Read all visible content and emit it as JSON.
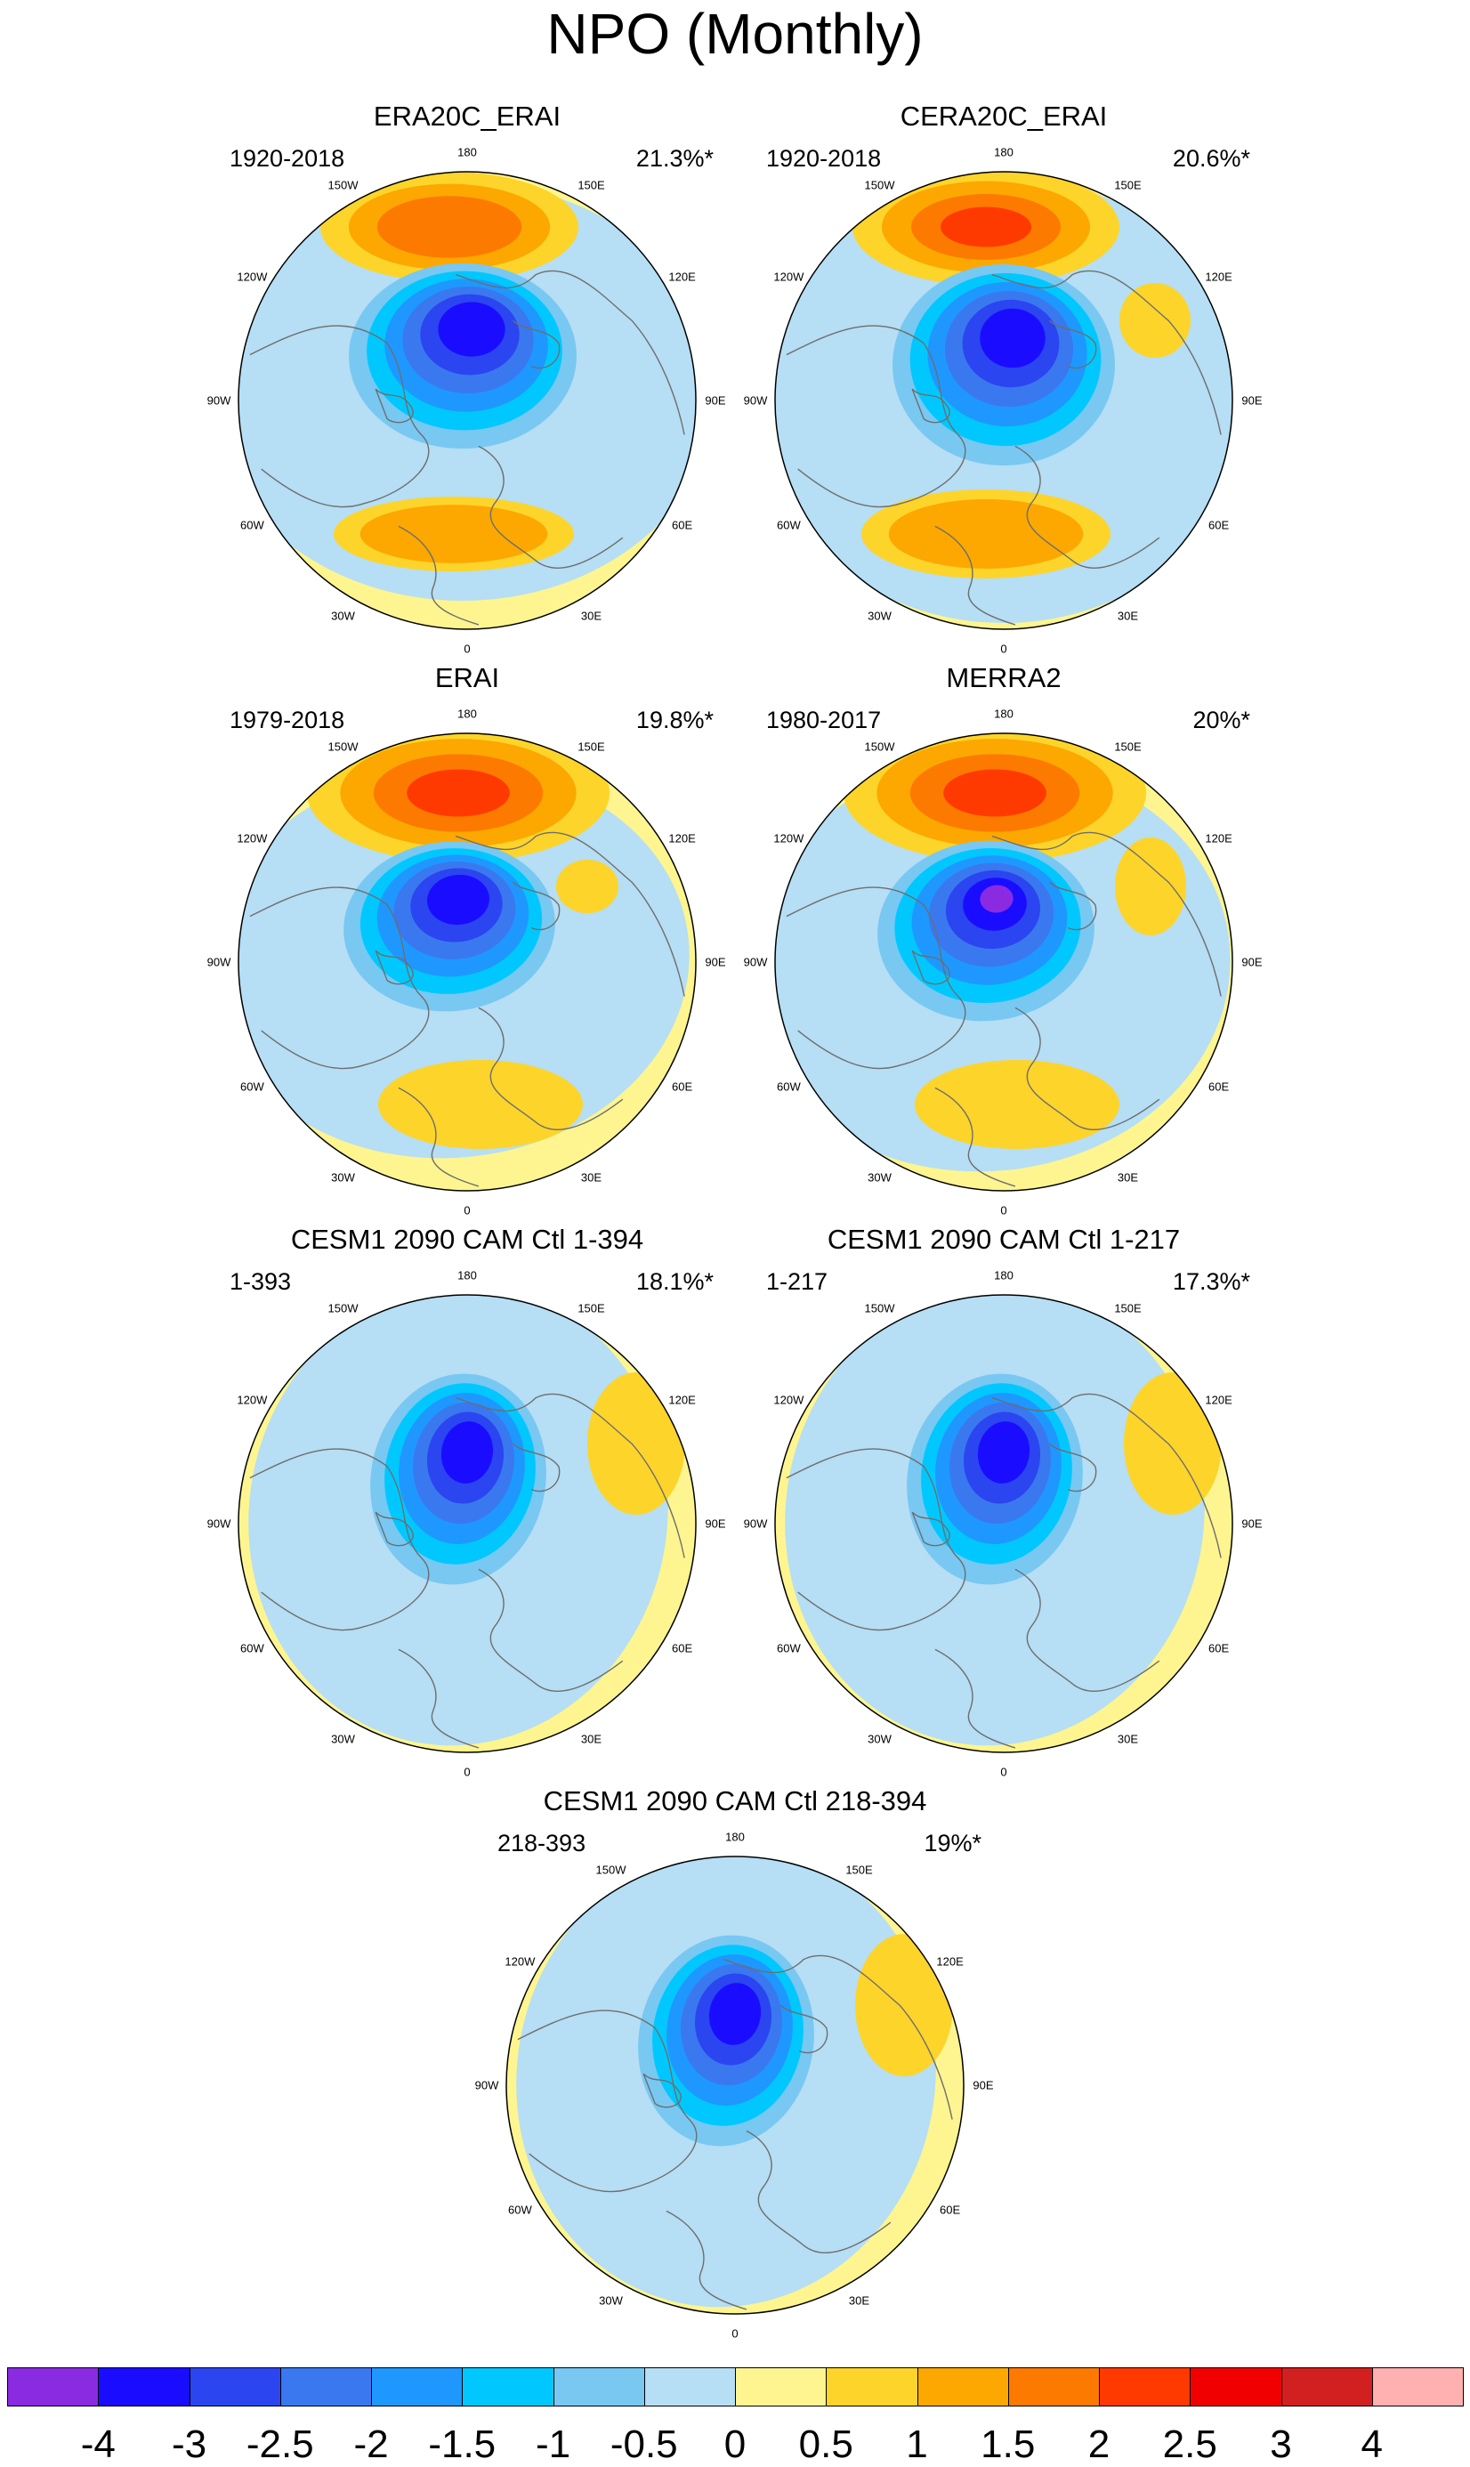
{
  "title": "NPO (Monthly)",
  "lon_labels": [
    "180",
    "150E",
    "120E",
    "90E",
    "60E",
    "30E",
    "0",
    "30W",
    "60W",
    "90W",
    "120W",
    "150W"
  ],
  "panels": [
    {
      "title": "ERA20C_ERAI",
      "period": "1920-2018",
      "percent": "21.3%*",
      "style": "era20c"
    },
    {
      "title": "CERA20C_ERAI",
      "period": "1920-2018",
      "percent": "20.6%*",
      "style": "cera20c"
    },
    {
      "title": "ERAI",
      "period": "1979-2018",
      "percent": "19.8%*",
      "style": "erai"
    },
    {
      "title": "MERRA2",
      "period": "1980-2017",
      "percent": "20%*",
      "style": "merra2"
    },
    {
      "title": "CESM1 2090 CAM Ctl 1-394",
      "period": "1-393",
      "percent": "18.1%*",
      "style": "cesm"
    },
    {
      "title": "CESM1 2090 CAM Ctl 1-217",
      "period": "1-217",
      "percent": "17.3%*",
      "style": "cesm"
    },
    {
      "title": "CESM1 2090 CAM Ctl 218-394",
      "period": "218-393",
      "percent": "19%*",
      "style": "cesm"
    }
  ],
  "colorbar": {
    "labels": [
      "-4",
      "-3",
      "-2.5",
      "-2",
      "-1.5",
      "-1",
      "-0.5",
      "0",
      "0.5",
      "1",
      "1.5",
      "2",
      "2.5",
      "3",
      "4"
    ],
    "colors": [
      "#8a2be2",
      "#1a0dff",
      "#2b45f0",
      "#3a78f0",
      "#1e98ff",
      "#00c8ff",
      "#78c8f2",
      "#b6def4",
      "#fef590",
      "#fdd42a",
      "#fca800",
      "#fd7a00",
      "#ff3a00",
      "#f00000",
      "#d21f1f",
      "#ffb0b0"
    ]
  }
}
